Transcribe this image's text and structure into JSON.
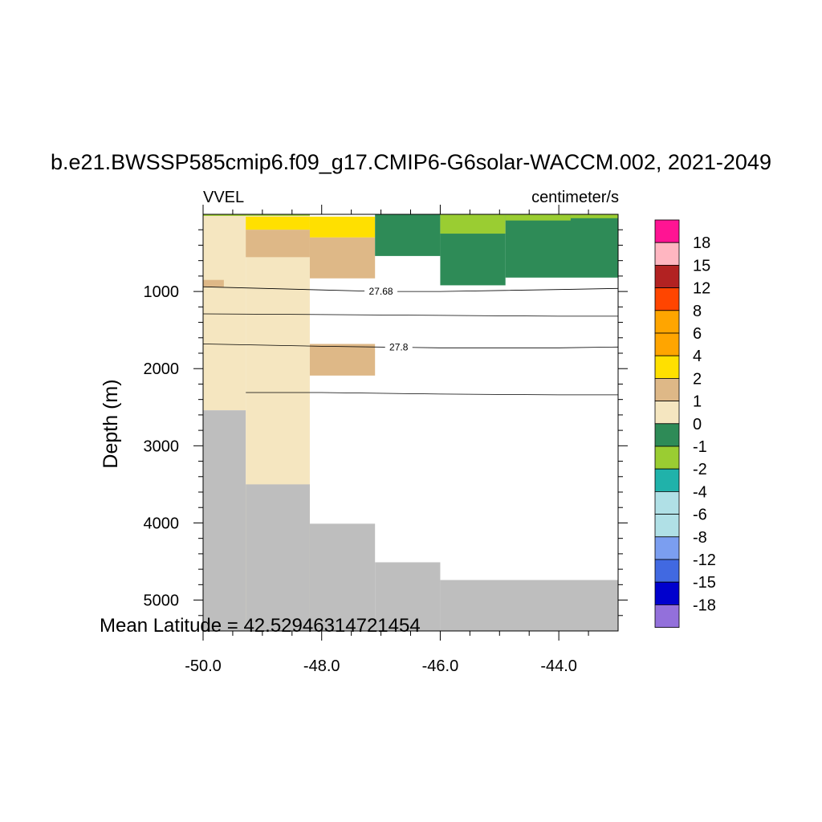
{
  "title": "b.e21.BWSSP585cmip6.f09_g17.CMIP6-G6solar-WACCM.002, 2021-2049",
  "left_label": "VVEL",
  "right_label": "centimeter/s",
  "ylabel": "Depth (m)",
  "footer": "Mean Latitude = 42.52946314721454",
  "colors": {
    "background": "#ffffff",
    "land": "#bebebe",
    "contour": "#000000"
  },
  "chart_data": {
    "type": "heatmap",
    "xlim": [
      -50.0,
      -43.0
    ],
    "ylim": [
      5400,
      0
    ],
    "yreversed": true,
    "x_ticks": [
      -50.0,
      -48.0,
      -46.0,
      -44.0
    ],
    "x_tick_labels": [
      "-50.0",
      "-48.0",
      "-46.0",
      "-44.0"
    ],
    "y_ticks": [
      1000,
      2000,
      3000,
      4000,
      5000
    ],
    "y_tick_labels": [
      "1000",
      "2000",
      "3000",
      "4000",
      "5000"
    ],
    "colorbar": {
      "labels": [
        "18",
        "15",
        "12",
        "8",
        "6",
        "4",
        "2",
        "1",
        "0",
        "-1",
        "-2",
        "-4",
        "-6",
        "-8",
        "-12",
        "-15",
        "-18"
      ],
      "colors": [
        "#ff1493",
        "#ffb6c1",
        "#b22222",
        "#ff4500",
        "#ffa500",
        "#ffa500",
        "#ffe000",
        "#deb887",
        "#f5e6c0",
        "#2e8b57",
        "#9acd32",
        "#20b2aa",
        "#b0e0e6",
        "#b0e0e6",
        "#7b9ef0",
        "#4169e1",
        "#0000cd",
        "#9370db"
      ]
    },
    "cells": [
      {
        "x0": -50.0,
        "x1": -49.28,
        "y0": 0,
        "y1": 2540,
        "value": "0 to 1"
      },
      {
        "x0": -50.0,
        "x1": -49.28,
        "y0": 2540,
        "y1": 5400,
        "value": "land"
      },
      {
        "x0": -50.0,
        "x1": -48.2,
        "y0": 0,
        "y1": 20,
        "value": "-2 to -1"
      },
      {
        "x0": -50.0,
        "x1": -49.65,
        "y0": 850,
        "y1": 940,
        "value": "1 to 2"
      },
      {
        "x0": -49.28,
        "x1": -48.2,
        "y0": 20,
        "y1": 5400,
        "value": "0 to 1"
      },
      {
        "x0": -49.28,
        "x1": -48.2,
        "y0": 3500,
        "y1": 5400,
        "value": "land"
      },
      {
        "x0": -49.28,
        "x1": -48.2,
        "y0": 30,
        "y1": 200,
        "value": "2 to 4"
      },
      {
        "x0": -49.28,
        "x1": -48.2,
        "y0": 200,
        "y1": 555,
        "value": "1 to 2"
      },
      {
        "x0": -48.2,
        "x1": -47.1,
        "y0": 30,
        "y1": 300,
        "value": "2 to 4"
      },
      {
        "x0": -48.2,
        "x1": -47.1,
        "y0": 300,
        "y1": 830,
        "value": "1 to 2"
      },
      {
        "x0": -48.2,
        "x1": -47.1,
        "y0": 1680,
        "y1": 2090,
        "value": "1 to 2"
      },
      {
        "x0": -48.2,
        "x1": -47.1,
        "y0": 4010,
        "y1": 5400,
        "value": "land"
      },
      {
        "x0": -47.1,
        "x1": -46.0,
        "y0": 0,
        "y1": 540,
        "value": "-1 to 0"
      },
      {
        "x0": -47.1,
        "x1": -46.0,
        "y0": 4510,
        "y1": 5400,
        "value": "land"
      },
      {
        "x0": -46.0,
        "x1": -44.9,
        "y0": 0,
        "y1": 250,
        "value": "-2 to -1"
      },
      {
        "x0": -46.0,
        "x1": -44.9,
        "y0": 250,
        "y1": 920,
        "value": "-1 to 0"
      },
      {
        "x0": -44.9,
        "x1": -43.0,
        "y0": 0,
        "y1": 820,
        "value": "-1 to 0"
      },
      {
        "x0": -44.9,
        "x1": -43.8,
        "y0": 0,
        "y1": 80,
        "value": "-2 to -1"
      },
      {
        "x0": -43.8,
        "x1": -43.0,
        "y0": 0,
        "y1": 50,
        "value": "-2 to -1"
      },
      {
        "x0": -46.0,
        "x1": -43.0,
        "y0": 4740,
        "y1": 5400,
        "value": "land"
      }
    ],
    "contours": [
      {
        "label": "27.68",
        "points": [
          [
            -50.0,
            940
          ],
          [
            -48.0,
            980
          ],
          [
            -47.0,
            1000
          ],
          [
            -46.0,
            1000
          ],
          [
            -44.0,
            975
          ],
          [
            -43.0,
            960
          ]
        ]
      },
      {
        "label": "",
        "points": [
          [
            -50.0,
            1290
          ],
          [
            -48.0,
            1300
          ],
          [
            -46.0,
            1310
          ],
          [
            -44.0,
            1320
          ],
          [
            -43.0,
            1320
          ]
        ]
      },
      {
        "label": "27.8",
        "points": [
          [
            -50.0,
            1680
          ],
          [
            -48.0,
            1710
          ],
          [
            -46.0,
            1730
          ],
          [
            -44.0,
            1730
          ],
          [
            -43.0,
            1720
          ]
        ]
      },
      {
        "label": "",
        "points": [
          [
            -49.28,
            2310
          ],
          [
            -48.0,
            2310
          ],
          [
            -46.0,
            2330
          ],
          [
            -44.0,
            2340
          ],
          [
            -43.0,
            2340
          ]
        ]
      }
    ]
  }
}
